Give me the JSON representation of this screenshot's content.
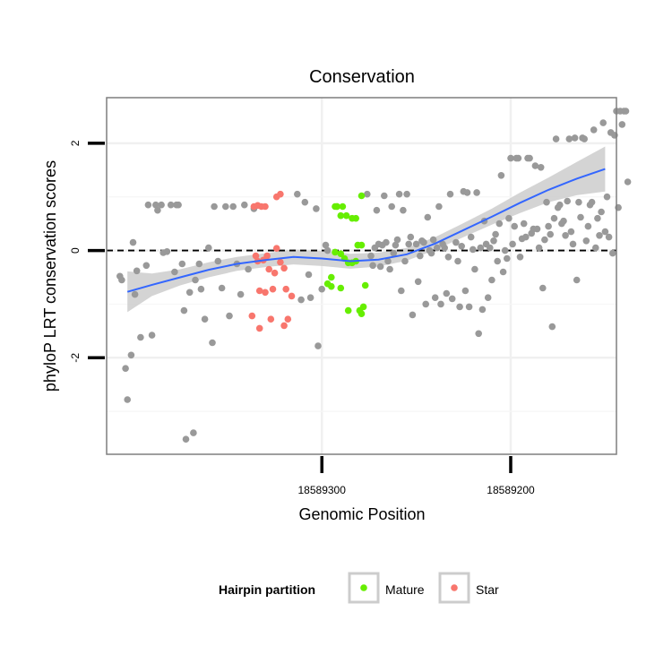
{
  "chart_data": {
    "type": "scatter",
    "title": "Conservation",
    "xlabel": "Genomic Position",
    "ylabel": "phyloP LRT conservation scores",
    "x_reversed": true,
    "xlim": [
      18589414,
      18589144
    ],
    "ylim": [
      -3.8,
      2.85
    ],
    "x_ticks": [
      18589300,
      18589200
    ],
    "x_tick_labels": [
      "18589300",
      "18589200"
    ],
    "y_ticks": [
      -2,
      0,
      2
    ],
    "y_tick_labels": [
      "-2",
      "0",
      "2"
    ],
    "reference_line": {
      "y": 0,
      "style": "dashed",
      "color": "#000000"
    },
    "grid": true,
    "legend": {
      "title": "Hairpin partition",
      "position": "bottom",
      "entries": [
        {
          "label": "Mature",
          "color": "#66ee00"
        },
        {
          "label": "Star",
          "color": "#f8766d"
        }
      ]
    },
    "colors": {
      "other": "#999999",
      "Mature": "#66ee00",
      "Star": "#f8766d",
      "smooth_line": "#3366ff",
      "smooth_band": "#cccccc"
    },
    "smooth": {
      "x": [
        18589403,
        18589390,
        18589375,
        18589360,
        18589345,
        18589330,
        18589315,
        18589300,
        18589285,
        18589270,
        18589255,
        18589240,
        18589225,
        18589210,
        18589195,
        18589180,
        18589165,
        18589150
      ],
      "y": [
        -0.77,
        -0.64,
        -0.5,
        -0.36,
        -0.25,
        -0.18,
        -0.12,
        -0.15,
        -0.2,
        -0.17,
        -0.07,
        0.13,
        0.38,
        0.63,
        0.89,
        1.13,
        1.34,
        1.52
      ],
      "lower": [
        -1.15,
        -0.85,
        -0.65,
        -0.5,
        -0.38,
        -0.31,
        -0.26,
        -0.29,
        -0.34,
        -0.3,
        -0.19,
        0.01,
        0.25,
        0.48,
        0.7,
        0.9,
        1.03,
        1.1
      ],
      "upper": [
        -0.39,
        -0.43,
        -0.35,
        -0.22,
        -0.12,
        -0.05,
        0.02,
        -0.01,
        -0.06,
        -0.04,
        0.05,
        0.25,
        0.51,
        0.78,
        1.08,
        1.36,
        1.65,
        1.94
      ]
    },
    "series": [
      {
        "name": "Mature",
        "points": [
          [
            18589293,
            0.82
          ],
          [
            18589292,
            0.82
          ],
          [
            18589289,
            0.82
          ],
          [
            18589290,
            0.65
          ],
          [
            18589287,
            0.65
          ],
          [
            18589284,
            0.6
          ],
          [
            18589282,
            0.6
          ],
          [
            18589279,
            1.02
          ],
          [
            18589281,
            0.1
          ],
          [
            18589279,
            0.1
          ],
          [
            18589293,
            -0.03
          ],
          [
            18589290,
            -0.06
          ],
          [
            18589295,
            -0.5
          ],
          [
            18589297,
            -0.62
          ],
          [
            18589295,
            -0.67
          ],
          [
            18589290,
            -0.7
          ],
          [
            18589286,
            -0.23
          ],
          [
            18589284,
            -0.23
          ],
          [
            18589288,
            -0.15
          ],
          [
            18589282,
            -0.2
          ],
          [
            18589286,
            -1.12
          ],
          [
            18589280,
            -1.12
          ],
          [
            18589279,
            -1.18
          ],
          [
            18589278,
            -1.05
          ],
          [
            18589277,
            -0.65
          ],
          [
            18589292,
            0.82
          ]
        ]
      },
      {
        "name": "Star",
        "points": [
          [
            18589336,
            0.82
          ],
          [
            18589334,
            0.84
          ],
          [
            18589332,
            0.82
          ],
          [
            18589330,
            0.82
          ],
          [
            18589324,
            1.0
          ],
          [
            18589322,
            1.05
          ],
          [
            18589334,
            -0.2
          ],
          [
            18589329,
            -0.1
          ],
          [
            18589324,
            0.04
          ],
          [
            18589328,
            -0.35
          ],
          [
            18589322,
            -0.22
          ],
          [
            18589320,
            -0.33
          ],
          [
            18589325,
            -0.42
          ],
          [
            18589333,
            -0.75
          ],
          [
            18589330,
            -0.78
          ],
          [
            18589326,
            -0.72
          ],
          [
            18589337,
            -1.22
          ],
          [
            18589333,
            -1.45
          ],
          [
            18589327,
            -1.28
          ],
          [
            18589320,
            -1.4
          ],
          [
            18589318,
            -1.28
          ],
          [
            18589319,
            -0.72
          ],
          [
            18589316,
            -0.85
          ],
          [
            18589335,
            -0.1
          ],
          [
            18589331,
            -0.18
          ]
        ]
      },
      {
        "name": "Other",
        "points": [
          [
            18589407,
            -0.48
          ],
          [
            18589406,
            -0.55
          ],
          [
            18589404,
            -2.2
          ],
          [
            18589403,
            -2.78
          ],
          [
            18589401,
            -1.95
          ],
          [
            18589400,
            0.15
          ],
          [
            18589399,
            -0.82
          ],
          [
            18589398,
            -0.38
          ],
          [
            18589396,
            -1.62
          ],
          [
            18589393,
            -0.28
          ],
          [
            18589392,
            0.85
          ],
          [
            18589390,
            -1.58
          ],
          [
            18589388,
            0.85
          ],
          [
            18589387,
            0.75
          ],
          [
            18589385,
            0.85
          ],
          [
            18589384,
            -0.04
          ],
          [
            18589382,
            -0.02
          ],
          [
            18589380,
            0.85
          ],
          [
            18589378,
            -0.4
          ],
          [
            18589377,
            0.85
          ],
          [
            18589376,
            0.85
          ],
          [
            18589374,
            -0.25
          ],
          [
            18589373,
            -1.12
          ],
          [
            18589372,
            -3.52
          ],
          [
            18589370,
            -0.78
          ],
          [
            18589368,
            -3.4
          ],
          [
            18589367,
            -0.55
          ],
          [
            18589365,
            -0.25
          ],
          [
            18589364,
            -0.72
          ],
          [
            18589362,
            -1.28
          ],
          [
            18589360,
            0.05
          ],
          [
            18589358,
            -1.72
          ],
          [
            18589357,
            0.82
          ],
          [
            18589355,
            -0.2
          ],
          [
            18589353,
            -0.7
          ],
          [
            18589351,
            0.82
          ],
          [
            18589349,
            -1.22
          ],
          [
            18589347,
            0.82
          ],
          [
            18589345,
            -0.25
          ],
          [
            18589343,
            -0.82
          ],
          [
            18589341,
            0.85
          ],
          [
            18589339,
            -0.35
          ],
          [
            18589336,
            0.78
          ],
          [
            18589313,
            1.05
          ],
          [
            18589311,
            -0.92
          ],
          [
            18589309,
            0.9
          ],
          [
            18589307,
            -0.45
          ],
          [
            18589306,
            -0.88
          ],
          [
            18589303,
            0.78
          ],
          [
            18589302,
            -1.78
          ],
          [
            18589300,
            -0.72
          ],
          [
            18589298,
            0.1
          ],
          [
            18589297,
            0.0
          ],
          [
            18589276,
            1.05
          ],
          [
            18589273,
            -0.28
          ],
          [
            18589271,
            0.75
          ],
          [
            18589270,
            0.12
          ],
          [
            18589268,
            0.1
          ],
          [
            18589267,
            1.02
          ],
          [
            18589265,
            -0.2
          ],
          [
            18589263,
            0.82
          ],
          [
            18589262,
            -0.05
          ],
          [
            18589260,
            0.2
          ],
          [
            18589258,
            -0.75
          ],
          [
            18589257,
            0.75
          ],
          [
            18589255,
            1.05
          ],
          [
            18589254,
            0.12
          ],
          [
            18589252,
            -1.2
          ],
          [
            18589250,
            0.12
          ],
          [
            18589249,
            -0.58
          ],
          [
            18589247,
            0.18
          ],
          [
            18589245,
            -1.0
          ],
          [
            18589244,
            0.62
          ],
          [
            18589243,
            0.0
          ],
          [
            18589241,
            0.2
          ],
          [
            18589240,
            -0.88
          ],
          [
            18589238,
            0.82
          ],
          [
            18589237,
            -1.0
          ],
          [
            18589235,
            0.05
          ],
          [
            18589234,
            -0.8
          ],
          [
            18589232,
            1.05
          ],
          [
            18589231,
            -0.9
          ],
          [
            18589229,
            0.15
          ],
          [
            18589227,
            -1.05
          ],
          [
            18589225,
            1.1
          ],
          [
            18589224,
            -0.75
          ],
          [
            18589222,
            -1.05
          ],
          [
            18589220,
            0.02
          ],
          [
            18589218,
            1.08
          ],
          [
            18589217,
            -1.55
          ],
          [
            18589215,
            -1.1
          ],
          [
            18589213,
            0.12
          ],
          [
            18589212,
            -0.88
          ],
          [
            18589210,
            -0.55
          ],
          [
            18589209,
            0.18
          ],
          [
            18589207,
            -0.2
          ],
          [
            18589206,
            0.5
          ],
          [
            18589205,
            1.4
          ],
          [
            18589203,
            0.0
          ],
          [
            18589202,
            -0.15
          ],
          [
            18589200,
            1.72
          ],
          [
            18589198,
            0.45
          ],
          [
            18589197,
            1.72
          ],
          [
            18589195,
            -0.12
          ],
          [
            18589193,
            0.5
          ],
          [
            18589191,
            1.72
          ],
          [
            18589189,
            0.32
          ],
          [
            18589187,
            1.58
          ],
          [
            18589185,
            0.05
          ],
          [
            18589183,
            -0.7
          ],
          [
            18589181,
            0.9
          ],
          [
            18589179,
            0.3
          ],
          [
            18589178,
            -1.42
          ],
          [
            18589176,
            2.08
          ],
          [
            18589175,
            0.8
          ],
          [
            18589173,
            0.5
          ],
          [
            18589171,
            0.28
          ],
          [
            18589169,
            2.08
          ],
          [
            18589167,
            0.12
          ],
          [
            18589165,
            -0.55
          ],
          [
            18589163,
            0.62
          ],
          [
            18589161,
            2.08
          ],
          [
            18589160,
            0.18
          ],
          [
            18589158,
            0.85
          ],
          [
            18589156,
            2.25
          ],
          [
            18589155,
            0.05
          ],
          [
            18589153,
            0.28
          ],
          [
            18589151,
            2.38
          ],
          [
            18589149,
            1.0
          ],
          [
            18589148,
            0.25
          ],
          [
            18589146,
            -0.05
          ],
          [
            18589145,
            2.15
          ],
          [
            18589239,
            0.05
          ],
          [
            18589233,
            -0.12
          ],
          [
            18589226,
            0.08
          ],
          [
            18589219,
            -0.35
          ],
          [
            18589214,
            0.55
          ],
          [
            18589211,
            0.05
          ],
          [
            18589204,
            -0.4
          ],
          [
            18589199,
            0.12
          ],
          [
            18589192,
            0.25
          ],
          [
            18589186,
            0.4
          ],
          [
            18589182,
            0.2
          ],
          [
            18589177,
            0.6
          ],
          [
            18589172,
            0.55
          ],
          [
            18589168,
            0.35
          ],
          [
            18589164,
            0.9
          ],
          [
            18589159,
            0.45
          ],
          [
            18589157,
            0.9
          ],
          [
            18589154,
            0.6
          ],
          [
            18589152,
            0.72
          ],
          [
            18589150,
            0.35
          ],
          [
            18589147,
            2.2
          ],
          [
            18589143,
            0.8
          ],
          [
            18589170,
            0.92
          ],
          [
            18589174,
            0.85
          ],
          [
            18589180,
            0.45
          ],
          [
            18589188,
            0.4
          ],
          [
            18589194,
            0.22
          ],
          [
            18589201,
            0.6
          ],
          [
            18589208,
            0.3
          ],
          [
            18589216,
            0.05
          ],
          [
            18589221,
            0.25
          ],
          [
            18589228,
            -0.2
          ],
          [
            18589236,
            0.12
          ],
          [
            18589242,
            -0.05
          ],
          [
            18589246,
            0.15
          ],
          [
            18589248,
            -0.1
          ],
          [
            18589253,
            0.25
          ],
          [
            18589256,
            -0.2
          ],
          [
            18589261,
            0.1
          ],
          [
            18589264,
            -0.35
          ],
          [
            18589266,
            0.15
          ],
          [
            18589269,
            -0.3
          ],
          [
            18589272,
            0.05
          ],
          [
            18589274,
            -0.1
          ],
          [
            18589140,
            2.6
          ],
          [
            18589142,
            2.6
          ],
          [
            18589144,
            2.6
          ],
          [
            18589139,
            2.6
          ],
          [
            18589141,
            2.35
          ],
          [
            18589138,
            1.28
          ],
          [
            18589162,
            2.1
          ],
          [
            18589166,
            2.1
          ],
          [
            18589190,
            1.72
          ],
          [
            18589196,
            1.72
          ],
          [
            18589184,
            1.55
          ],
          [
            18589223,
            1.08
          ],
          [
            18589259,
            1.05
          ]
        ]
      }
    ]
  }
}
